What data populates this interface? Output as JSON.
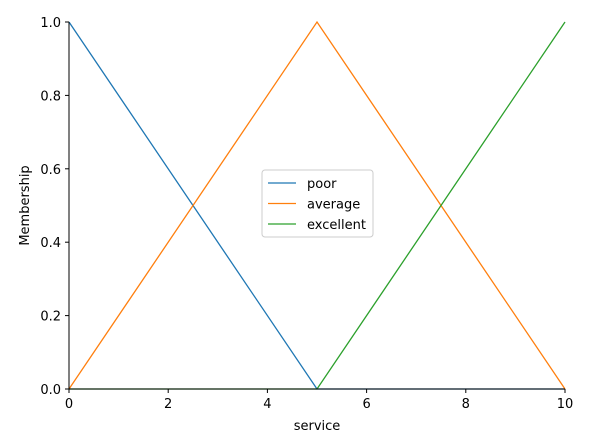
{
  "chart_data": {
    "type": "line",
    "xlabel": "service",
    "ylabel": "Membership",
    "xlim": [
      0,
      10
    ],
    "ylim": [
      0,
      1
    ],
    "x_ticks": [
      0,
      2,
      4,
      6,
      8,
      10
    ],
    "y_ticks": [
      0.0,
      0.2,
      0.4,
      0.6,
      0.8,
      1.0
    ],
    "x_tick_labels": [
      "0",
      "2",
      "4",
      "6",
      "8",
      "10"
    ],
    "y_tick_labels": [
      "0.0",
      "0.2",
      "0.4",
      "0.6",
      "0.8",
      "1.0"
    ],
    "grid": false,
    "legend_position": "center",
    "series": [
      {
        "name": "poor",
        "color": "#1f77b4",
        "x": [
          0,
          5,
          10
        ],
        "y": [
          1,
          0,
          0
        ]
      },
      {
        "name": "average",
        "color": "#ff7f0e",
        "x": [
          0,
          5,
          10
        ],
        "y": [
          0,
          1,
          0
        ]
      },
      {
        "name": "excellent",
        "color": "#2ca02c",
        "x": [
          0,
          5,
          10
        ],
        "y": [
          0,
          0,
          1
        ]
      }
    ]
  }
}
